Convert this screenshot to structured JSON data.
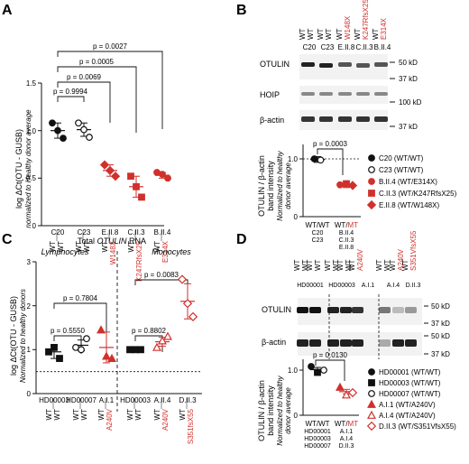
{
  "panel_labels": [
    "A",
    "B",
    "C",
    "D"
  ],
  "colors": {
    "red": "#d0312d",
    "black": "#111111"
  },
  "chart_data": [
    {
      "type": "scatter",
      "panel": "A",
      "ylabel": "log ΔCt(OTU - GUSB)",
      "ylabel2": "normalized to Healthy donor average",
      "ylim": [
        0,
        1.5
      ],
      "yticks": [
        "0",
        "0.5",
        "1.0",
        "1.5"
      ],
      "categories": [
        {
          "name": "C20",
          "g1": "WT",
          "g2": "WT",
          "color": "black",
          "marker": "circle",
          "filled": true,
          "values": [
            1.08,
            0.92,
            1.0
          ],
          "mean": 1.0,
          "sd": 0.08
        },
        {
          "name": "C23",
          "g1": "WT",
          "g2": "WT",
          "color": "black",
          "marker": "circle",
          "filled": false,
          "values": [
            1.08,
            0.93,
            1.01
          ],
          "mean": 1.01,
          "sd": 0.07
        },
        {
          "name": "E.II.8",
          "g1": "WT",
          "g2": "W148X",
          "color": "red",
          "marker": "diamond",
          "filled": true,
          "values": [
            0.64,
            0.52,
            0.58
          ],
          "mean": 0.58,
          "sd": 0.06
        },
        {
          "name": "C.II.3",
          "g1": "WT",
          "g2": "K247RfsX25",
          "color": "red",
          "marker": "square",
          "filled": true,
          "values": [
            0.52,
            0.3,
            0.41
          ],
          "mean": 0.41,
          "sd": 0.11
        },
        {
          "name": "B.II.4",
          "g1": "WT",
          "g2": "E314X",
          "color": "red",
          "marker": "circle",
          "filled": true,
          "values": [
            0.56,
            0.5,
            0.54
          ],
          "mean": 0.53,
          "sd": 0.03
        }
      ],
      "pvalues": [
        "p = 0.9994",
        "p = 0.0069",
        "p = 0.0005",
        "p = 0.0027"
      ]
    },
    {
      "type": "scatter",
      "panel": "B",
      "ylabel": "OTULIN / β-actin",
      "ylabel2": "band intensity",
      "ylabel3": "Normalized to healthy",
      "ylabel4": "donor average",
      "ylim": [
        0,
        1.0
      ],
      "yticks": [
        "0",
        "1.0"
      ],
      "group_labels": [
        "WT/WT",
        "WT/MT"
      ],
      "group1_members": [
        "C20",
        "C23"
      ],
      "group2_members": [
        "B.II.4",
        "C.II.3",
        "E.II.8"
      ],
      "pvalue": "p = 0.0003",
      "points_group1": [
        1.0,
        0.98
      ],
      "points_group2": [
        0.55,
        0.57,
        0.54
      ],
      "legend": [
        {
          "label": "C20 (WT/WT)",
          "marker": "circle",
          "color": "black",
          "filled": true
        },
        {
          "label": "C23 (WT/WT)",
          "marker": "circle",
          "color": "black",
          "filled": false
        },
        {
          "label": "B.II.4 (WT/E314X)",
          "marker": "circle",
          "color": "red",
          "filled": true
        },
        {
          "label": "C.II.3 (WT/K247RfsX25)",
          "marker": "square",
          "color": "red",
          "filled": true
        },
        {
          "label": "E.II.8 (WT/W148X)",
          "marker": "diamond",
          "color": "red",
          "filled": true
        }
      ],
      "blot": {
        "lanes": [
          {
            "g1": "WT",
            "g2": "WT",
            "sample": "C20",
            "mut": false
          },
          {
            "g1": "WT",
            "g2": "WT",
            "sample": "C23",
            "mut": false
          },
          {
            "g1": "WT",
            "g2": "W148X",
            "sample": "E.II.8",
            "mut": true
          },
          {
            "g1": "WT",
            "g2": "K247RfsX25",
            "sample": "C.II.3",
            "mut": true
          },
          {
            "g1": "WT",
            "g2": "E314X",
            "sample": "B.II.4",
            "mut": true
          }
        ],
        "rows": [
          "OTULIN",
          "HOIP",
          "β-actin"
        ],
        "markers": [
          "50 kD",
          "37 kD",
          "100 kD",
          "37 kD"
        ]
      }
    },
    {
      "type": "scatter",
      "panel": "C",
      "title": "Total OTULIN RNA",
      "title_pre": "Total ",
      "title_em": "OTULIN",
      "title_post": " RNA",
      "subtitles": [
        "Lymphocytes",
        "Monocytes"
      ],
      "ylabel": "log ΔCt(OTU - GUSB)",
      "ylabel2": "Normalized to healthy donors",
      "ylim": [
        0,
        3
      ],
      "yticks": [
        "0",
        "1",
        "2",
        "3"
      ],
      "categories": [
        {
          "name": "HD00003",
          "g1": "WT",
          "g2": "WT",
          "color": "black",
          "marker": "square",
          "filled": true,
          "values": [
            0.95,
            0.8,
            1.05
          ],
          "mean": 0.95,
          "sd": 0.15
        },
        {
          "name": "HD00007",
          "g1": "WT",
          "g2": "WT",
          "color": "black",
          "marker": "circle",
          "filled": false,
          "values": [
            1.05,
            1.25,
            1.0
          ],
          "mean": 1.1,
          "sd": 0.12
        },
        {
          "name": "A.I.1",
          "g1": "WT",
          "g2": "A240V",
          "color": "red",
          "marker": "triangle",
          "filled": true,
          "values": [
            1.45,
            0.8,
            0.85
          ],
          "mean": 1.05,
          "sd": 0.35
        },
        {
          "name": "HD00003",
          "g1": "WT",
          "g2": "WT",
          "color": "black",
          "marker": "square",
          "filled": true,
          "values": [
            1.0,
            1.0,
            1.0
          ],
          "mean": 1.0,
          "sd": 0.02
        },
        {
          "name": "A.II.4",
          "g1": "WT",
          "g2": "A240V",
          "color": "red",
          "marker": "triangle",
          "filled": false,
          "values": [
            1.05,
            1.3,
            1.2
          ],
          "mean": 1.18,
          "sd": 0.1
        },
        {
          "name": "D.II.3",
          "g1": "WT",
          "g2": "S351fsX55",
          "color": "red",
          "marker": "diamond",
          "filled": false,
          "values": [
            2.6,
            1.75,
            2.05
          ],
          "mean": 2.1,
          "sd": 0.4
        }
      ],
      "pvalues": [
        "p = 0.5550",
        "p = 0.7804",
        "p = 0.8802",
        "p = 0.0083"
      ]
    },
    {
      "type": "scatter",
      "panel": "D",
      "ylabel": "OTULIN / β-actin",
      "ylabel2": "band intensity",
      "ylabel3": "Normalized to healthy",
      "ylabel4": "donor average",
      "ylim": [
        0,
        1.0
      ],
      "yticks": [
        "0",
        "1.0"
      ],
      "group_labels": [
        "WT/WT",
        "WT/MT"
      ],
      "group1_members": [
        "HD00001",
        "HD00003",
        "HD00007"
      ],
      "group2_members": [
        "A.I.1",
        "A.I.4",
        "D.II.3"
      ],
      "pvalue": "p = 0.0130",
      "points_group1": [
        1.08,
        0.95,
        1.0
      ],
      "points_group2": [
        0.62,
        0.45,
        0.5
      ],
      "legend": [
        {
          "label": "HD00001 (WT/WT)",
          "marker": "circle",
          "color": "black",
          "filled": true
        },
        {
          "label": "HD00003 (WT/WT)",
          "marker": "square",
          "color": "black",
          "filled": true
        },
        {
          "label": "HD00007 (WT/WT)",
          "marker": "circle",
          "color": "black",
          "filled": false
        },
        {
          "label": "A.I.1 (WT/A240V)",
          "marker": "triangle",
          "color": "red",
          "filled": true
        },
        {
          "label": "A.I.4 (WT/A240V)",
          "marker": "triangle",
          "color": "red",
          "filled": false
        },
        {
          "label": "D.II.3 (WT/S351VfsX55)",
          "marker": "diamond",
          "color": "red",
          "filled": false
        }
      ],
      "blot": {
        "lanes": [
          {
            "g1": "WT",
            "g2": "WT",
            "mut": false
          },
          {
            "g1": "WT",
            "g2": "WT",
            "mut": false
          },
          {
            "g1": "WT",
            "g2": "WT",
            "mut": false
          },
          {
            "g1": "WT",
            "g2": "WT",
            "mut": false
          },
          {
            "g1": "WT",
            "g2": "A240V",
            "mut": true
          },
          {
            "g1": "WT",
            "g2": "WT",
            "mut": false
          },
          {
            "g1": "WT",
            "g2": "A240V",
            "mut": true
          },
          {
            "g1": "WT",
            "g2": "S351VfsX55",
            "mut": true
          }
        ],
        "samples": [
          "HD00001",
          "HD00003",
          "HD00007",
          "A.I.1",
          "A.I.4",
          "D.II.3"
        ],
        "rows": [
          "OTULIN",
          "β-actin"
        ],
        "markers": [
          "50 kD",
          "37 kD",
          "50 kD",
          "37 kD"
        ]
      }
    }
  ]
}
